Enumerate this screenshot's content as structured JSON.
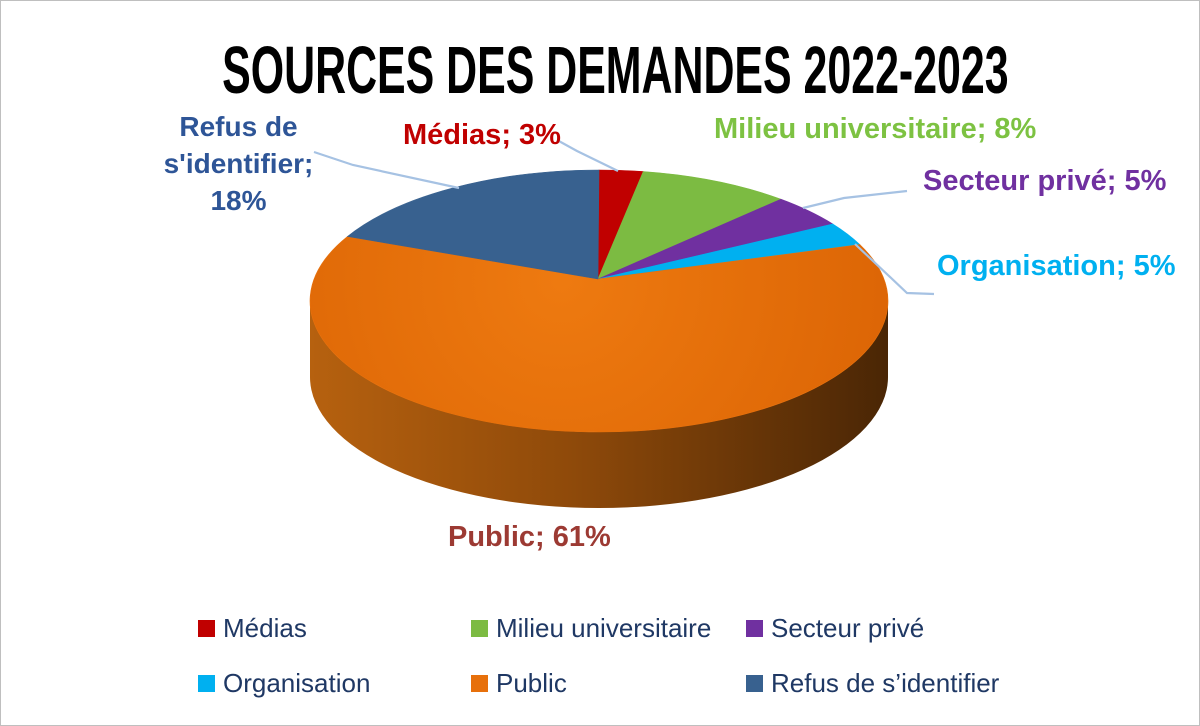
{
  "title": {
    "text": "SOURCES DES DEMANDES 2022-2023",
    "color": "#000000"
  },
  "chart_data": {
    "type": "pie",
    "effect": "3d",
    "title": "SOURCES DES DEMANDES 2022-2023",
    "categories": [
      "Médias",
      "Milieu universitaire",
      "Secteur privé",
      "Organisation",
      "Public",
      "Refus de s'identifier"
    ],
    "values": [
      3,
      8,
      5,
      5,
      61,
      18
    ],
    "unit": "%",
    "colors": [
      "#C00000",
      "#7CBB42",
      "#7030A0",
      "#00B0F0",
      "#E7700B",
      "#38618F"
    ],
    "data_labels": [
      {
        "text": "Médias; 3%",
        "color": "#C00000"
      },
      {
        "text": "Milieu universitaire; 8%",
        "color": "#7DC242"
      },
      {
        "text": "Secteur privé; 5%",
        "color": "#7030A0"
      },
      {
        "text": "Organisation; 5%",
        "color": "#00B0F0"
      },
      {
        "text": "Public; 61%",
        "color": "#9C3A33"
      },
      {
        "text": "Refus de s'identifier; 18%",
        "color": "#2E5597"
      }
    ],
    "leader_line_color": "#A6C2E3",
    "legend": {
      "position": "bottom",
      "text_color": "#1F3864",
      "items": [
        "Médias",
        "Milieu universitaire",
        "Secteur privé",
        "Organisation",
        "Public",
        "Refus de s’identifier"
      ]
    }
  }
}
